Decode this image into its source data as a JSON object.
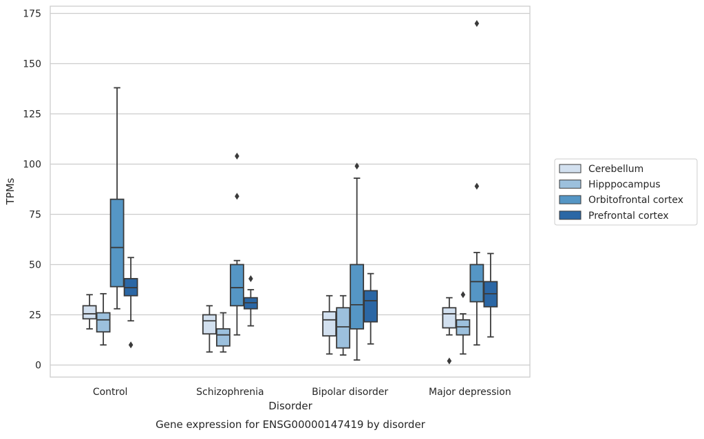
{
  "chart_data": {
    "type": "box",
    "title": "Gene expression for ENSG00000147419 by disorder",
    "xlabel": "Disorder",
    "ylabel": "TPMs",
    "ylim": [
      -6,
      177
    ],
    "yticks": [
      0,
      25,
      50,
      75,
      100,
      125,
      150,
      175
    ],
    "grid": true,
    "legend_position": "right",
    "categories": [
      "Control",
      "Schizophrenia",
      "Bipolar disorder",
      "Major depression"
    ],
    "series": [
      {
        "name": "Cerebellum",
        "color": "#d2e0ef",
        "boxes": [
          {
            "whisker_low": 18,
            "q1": 23,
            "median": 25.5,
            "q3": 29.5,
            "whisker_high": 35,
            "outliers": []
          },
          {
            "whisker_low": 6.5,
            "q1": 15.5,
            "median": 22,
            "q3": 25,
            "whisker_high": 29.5,
            "outliers": []
          },
          {
            "whisker_low": 5.5,
            "q1": 14.5,
            "median": 22.5,
            "q3": 26.5,
            "whisker_high": 34.5,
            "outliers": []
          },
          {
            "whisker_low": 15,
            "q1": 18.5,
            "median": 25.5,
            "q3": 28.5,
            "whisker_high": 33.5,
            "outliers": [
              2
            ]
          }
        ]
      },
      {
        "name": "Hipppocampus",
        "color": "#9cc0dd",
        "boxes": [
          {
            "whisker_low": 10,
            "q1": 16.5,
            "median": 22.5,
            "q3": 26,
            "whisker_high": 35.5,
            "outliers": []
          },
          {
            "whisker_low": 6.5,
            "q1": 9.5,
            "median": 15,
            "q3": 18,
            "whisker_high": 26,
            "outliers": []
          },
          {
            "whisker_low": 5,
            "q1": 8.5,
            "median": 19,
            "q3": 28.5,
            "whisker_high": 34.5,
            "outliers": []
          },
          {
            "whisker_low": 5.5,
            "q1": 15,
            "median": 19,
            "q3": 22.5,
            "whisker_high": 25.5,
            "outliers": [
              35
            ]
          }
        ]
      },
      {
        "name": "Orbitofrontal cortex",
        "color": "#5596c5",
        "boxes": [
          {
            "whisker_low": 28,
            "q1": 39,
            "median": 58.5,
            "q3": 82.5,
            "whisker_high": 138,
            "outliers": []
          },
          {
            "whisker_low": 15,
            "q1": 29.5,
            "median": 38.5,
            "q3": 50,
            "whisker_high": 52,
            "outliers": [
              84,
              104
            ]
          },
          {
            "whisker_low": 2.5,
            "q1": 18,
            "median": 30,
            "q3": 50,
            "whisker_high": 93,
            "outliers": [
              99
            ]
          },
          {
            "whisker_low": 10,
            "q1": 31.5,
            "median": 41.5,
            "q3": 50,
            "whisker_high": 56,
            "outliers": [
              89,
              170
            ]
          }
        ]
      },
      {
        "name": "Prefrontal cortex",
        "color": "#2b67a5",
        "boxes": [
          {
            "whisker_low": 22,
            "q1": 34.5,
            "median": 38.5,
            "q3": 43,
            "whisker_high": 53.5,
            "outliers": [
              10
            ]
          },
          {
            "whisker_low": 19.5,
            "q1": 28,
            "median": 31,
            "q3": 33.5,
            "whisker_high": 37.5,
            "outliers": [
              43
            ]
          },
          {
            "whisker_low": 10.5,
            "q1": 21.5,
            "median": 32,
            "q3": 37,
            "whisker_high": 45.5,
            "outliers": []
          },
          {
            "whisker_low": 14,
            "q1": 29,
            "median": 35.5,
            "q3": 41.5,
            "whisker_high": 55.5,
            "outliers": []
          }
        ]
      }
    ]
  }
}
